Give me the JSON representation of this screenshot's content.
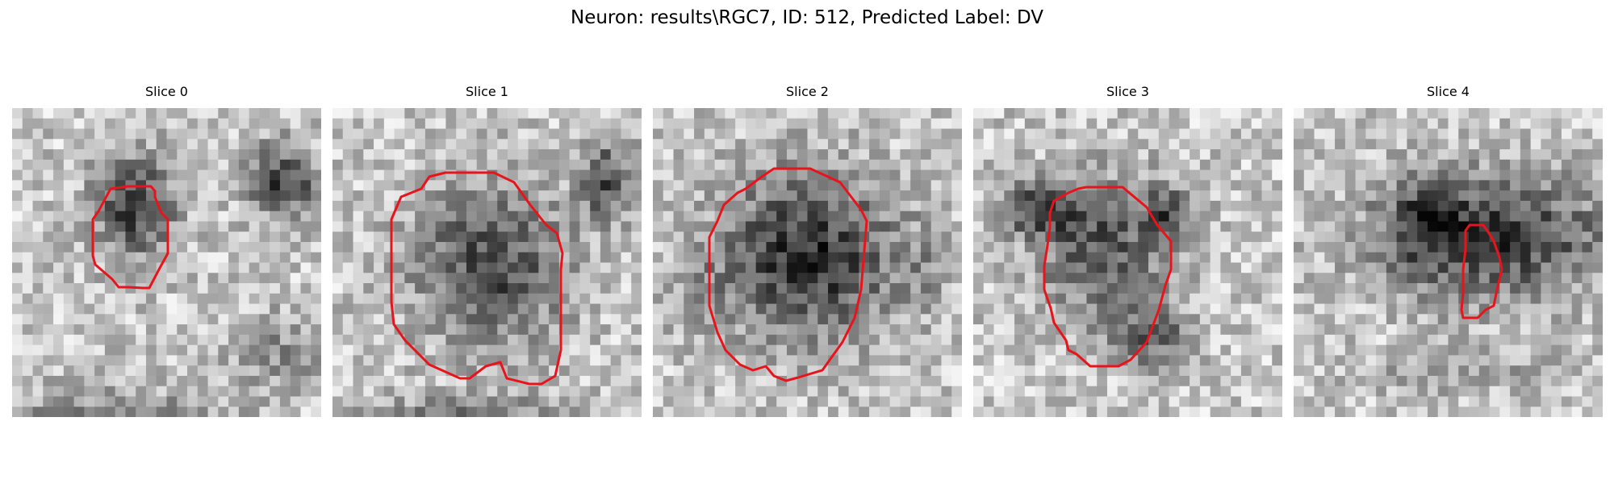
{
  "figure": {
    "title": "Neuron: results\\RGC7, ID: 512, Predicted Label: DV"
  },
  "panels": [
    {
      "title": "Slice 0"
    },
    {
      "title": "Slice 1"
    },
    {
      "title": "Slice 2"
    },
    {
      "title": "Slice 3"
    },
    {
      "title": "Slice 4"
    }
  ],
  "colors": {
    "contour": "#e8141c",
    "background": "#ffffff"
  }
}
